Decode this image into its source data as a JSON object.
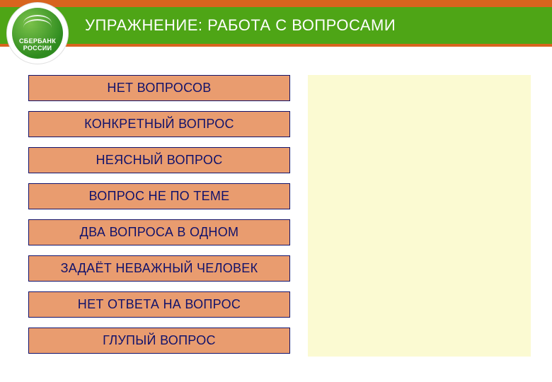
{
  "colors": {
    "orange": "#d8641e",
    "green": "#4ea516",
    "item_bg": "#e99c6f",
    "item_border": "#11126b",
    "item_text": "#11126b",
    "right_panel": "#fbfad2",
    "title_text": "#ffffff"
  },
  "logo": {
    "line1": "СБЕРБАНК",
    "line2": "РОССИИ"
  },
  "title": "УПРАЖНЕНИЕ: РАБОТА С ВОПРОСАМИ",
  "items": [
    "НЕТ ВОПРОСОВ",
    "КОНКРЕТНЫЙ ВОПРОС",
    "НЕЯСНЫЙ ВОПРОС",
    "ВОПРОС НЕ ПО ТЕМЕ",
    "ДВА ВОПРОСА В ОДНОМ",
    "ЗАДАЁТ НЕВАЖНЫЙ ЧЕЛОВЕК",
    "НЕТ ОТВЕТА НА ВОПРОС",
    "ГЛУПЫЙ ВОПРОС"
  ]
}
